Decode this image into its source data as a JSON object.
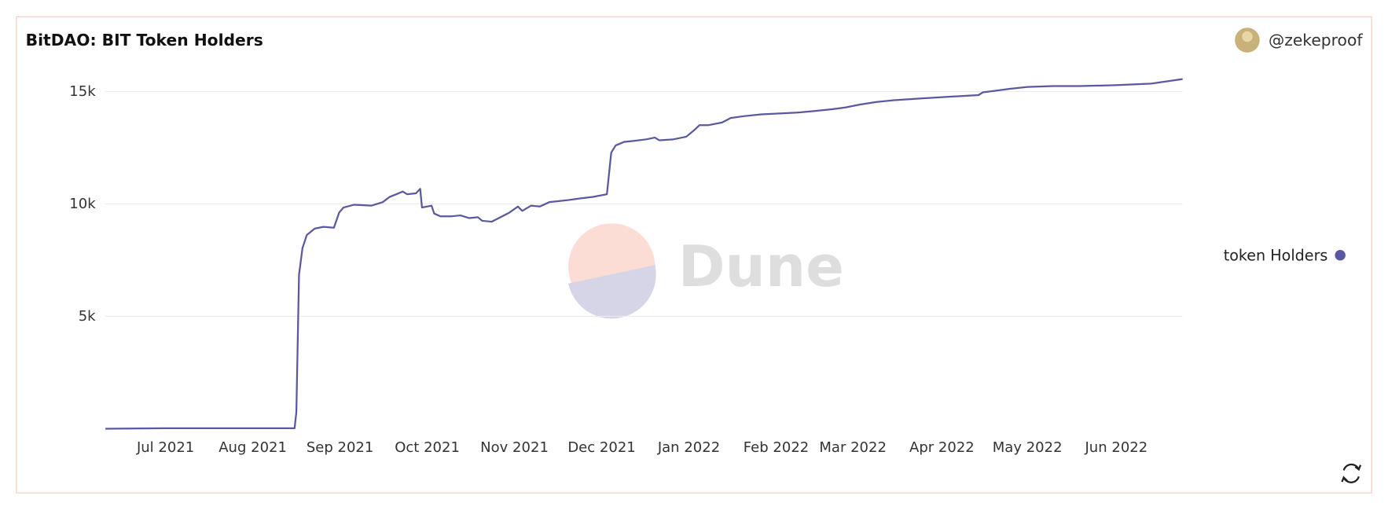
{
  "chart_data": {
    "type": "line",
    "title": "BitDAO: BIT Token Holders",
    "author": "@zekeproof",
    "watermark": "Dune",
    "x": [
      0.31,
      0.98,
      2.48,
      2.5,
      2.53,
      2.57,
      2.62,
      2.71,
      2.81,
      2.93,
      2.99,
      3.04,
      3.16,
      3.36,
      3.49,
      3.57,
      3.67,
      3.72,
      3.77,
      3.87,
      3.92,
      3.94,
      4.05,
      4.08,
      4.15,
      4.28,
      4.38,
      4.48,
      4.58,
      4.63,
      4.74,
      4.84,
      4.94,
      5.04,
      5.09,
      5.19,
      5.29,
      5.4,
      5.6,
      5.75,
      5.9,
      6.06,
      6.11,
      6.16,
      6.26,
      6.36,
      6.51,
      6.61,
      6.66,
      6.82,
      6.97,
      7.07,
      7.12,
      7.22,
      7.38,
      7.48,
      7.63,
      7.83,
      8.04,
      8.24,
      8.44,
      8.64,
      8.8,
      8.95,
      9.15,
      9.35,
      9.66,
      9.96,
      10.32,
      10.37,
      10.68,
      10.88,
      11.18,
      11.48,
      11.89,
      12.3,
      12.66
    ],
    "series": [
      {
        "name": "token Holders",
        "color": "#5a59a0",
        "values": [
          0,
          20,
          20,
          750,
          6850,
          8030,
          8620,
          8900,
          8980,
          8940,
          9610,
          9840,
          9960,
          9920,
          10080,
          10310,
          10470,
          10550,
          10430,
          10470,
          10670,
          9840,
          9920,
          9570,
          9450,
          9450,
          9490,
          9370,
          9410,
          9250,
          9210,
          9410,
          9610,
          9880,
          9690,
          9920,
          9880,
          10080,
          10160,
          10240,
          10310,
          10430,
          12280,
          12600,
          12760,
          12800,
          12870,
          12950,
          12830,
          12870,
          12990,
          13310,
          13500,
          13500,
          13620,
          13820,
          13900,
          13980,
          14020,
          14060,
          14130,
          14210,
          14290,
          14410,
          14530,
          14610,
          14690,
          14760,
          14840,
          14960,
          15120,
          15200,
          15240,
          15240,
          15280,
          15350,
          15550
        ]
      }
    ],
    "xlim": [
      0.31,
      12.66
    ],
    "xticks": [
      {
        "value": 1,
        "label": "Jul 2021"
      },
      {
        "value": 2,
        "label": "Aug 2021"
      },
      {
        "value": 3,
        "label": "Sep 2021"
      },
      {
        "value": 4,
        "label": "Oct 2021"
      },
      {
        "value": 5,
        "label": "Nov 2021"
      },
      {
        "value": 6,
        "label": "Dec 2021"
      },
      {
        "value": 7,
        "label": "Jan 2022"
      },
      {
        "value": 8,
        "label": "Feb 2022"
      },
      {
        "value": 8.88,
        "label": "Mar 2022"
      },
      {
        "value": 9.9,
        "label": "Apr 2022"
      },
      {
        "value": 10.88,
        "label": "May 2022"
      },
      {
        "value": 11.9,
        "label": "Jun 2022"
      }
    ],
    "ylim": [
      0,
      16000
    ],
    "yticks": [
      {
        "value": 5000,
        "label": "5k"
      },
      {
        "value": 10000,
        "label": "10k"
      },
      {
        "value": 15000,
        "label": "15k"
      }
    ],
    "grid": true,
    "legend": "right"
  }
}
